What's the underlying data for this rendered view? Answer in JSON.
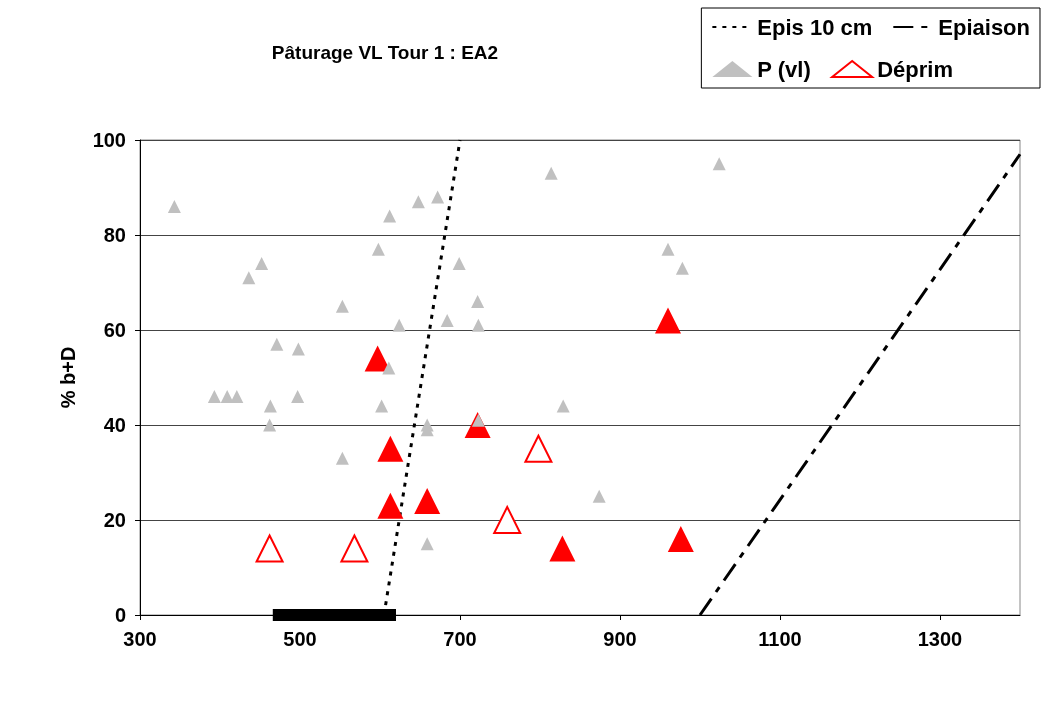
{
  "chart_data": {
    "type": "scatter",
    "title": "Pâturage VL Tour 1 : EA2",
    "ylabel": "% b+D",
    "xlim": [
      300,
      1400
    ],
    "xticks": [
      300,
      500,
      700,
      900,
      {
        "value": 1100,
        "label": "1100"
      },
      {
        "value": 1300,
        "label": "1300"
      }
    ],
    "ylim": [
      0,
      100
    ],
    "yticks": [
      0,
      20,
      40,
      60,
      80,
      100
    ],
    "grid": "y",
    "legend": "top right",
    "marker": "triangle",
    "series": [
      {
        "name": "Epis 10 cm",
        "type": "line",
        "color": "#000000",
        "line_style": "dotted",
        "marker": "none",
        "x": [
          605,
          700
        ],
        "values": [
          0,
          100
        ]
      },
      {
        "name": "Epiaison",
        "type": "line",
        "color": "#000000",
        "line_style": "dashed",
        "marker": "none",
        "x": [
          1000,
          1400
        ],
        "values": [
          0,
          97
        ]
      },
      {
        "type": "line",
        "color": "#000000",
        "line_style": "solid",
        "marker": "none",
        "x": [
          466,
          620
        ],
        "values": [
          0,
          0
        ]
      },
      {
        "name": "P (vl)",
        "color": "#c0c0c0",
        "x": [
          343,
          436,
          452,
          393,
          409,
          421,
          471,
          463,
          462,
          498,
          497,
          553,
          553,
          598,
          602,
          611,
          612,
          624,
          648,
          672,
          659,
          659,
          659,
          684,
          699,
          722,
          723,
          723,
          814,
          829,
          874,
          960,
          978,
          1024
        ],
        "values": [
          86,
          71,
          74,
          46,
          46,
          46,
          57,
          44,
          40,
          56,
          46,
          33,
          65,
          77,
          44,
          52,
          84,
          61,
          87,
          88,
          40,
          39,
          15,
          62,
          74,
          66,
          61,
          41,
          93,
          44,
          25,
          77,
          73,
          95
        ]
      },
      {
        "name": "Déprim",
        "color": "#ff0000",
        "x": [
          462,
          568,
          759,
          798
        ],
        "values": [
          14,
          14,
          20,
          35
        ]
      },
      {
        "color": "#ff0000",
        "x": [
          597,
          613,
          613,
          659,
          722,
          828,
          960,
          976
        ],
        "values": [
          54,
          35,
          23,
          24,
          40,
          14,
          62,
          16
        ]
      }
    ]
  }
}
